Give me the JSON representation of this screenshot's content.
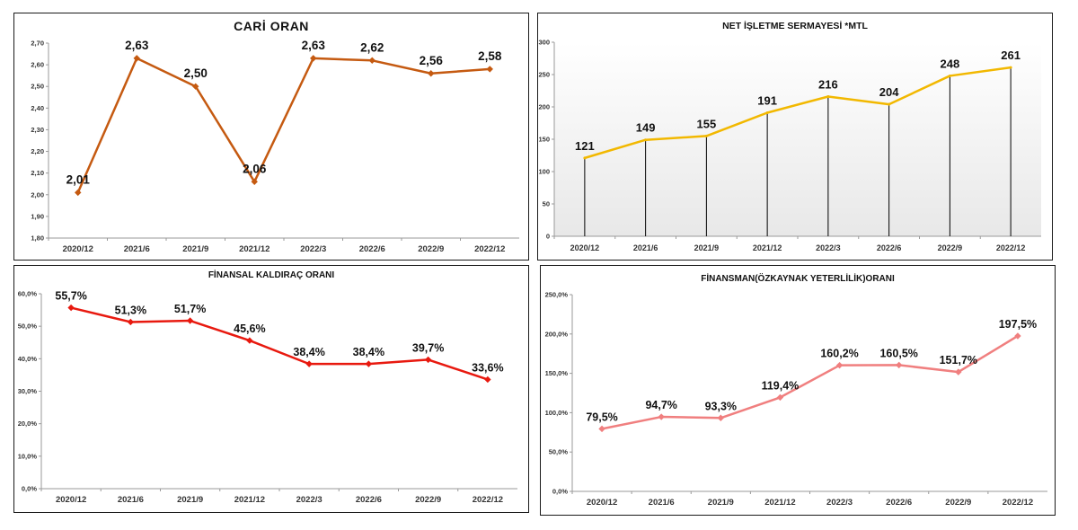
{
  "chart_data": [
    {
      "type": "line",
      "title": "CARİ ORAN",
      "categories": [
        "2020/12",
        "2021/6",
        "2021/9",
        "2021/12",
        "2022/3",
        "2022/6",
        "2022/9",
        "2022/12"
      ],
      "values": [
        2.01,
        2.63,
        2.5,
        2.06,
        2.63,
        2.62,
        2.56,
        2.58
      ],
      "data_labels": [
        "2,01",
        "2,63",
        "2,50",
        "2,06",
        "2,63",
        "2,62",
        "2,56",
        "2,58"
      ],
      "ylim": [
        1.8,
        2.7
      ],
      "yticks": [
        "1,80",
        "1,90",
        "2,00",
        "2,10",
        "2,20",
        "2,30",
        "2,40",
        "2,50",
        "2,60",
        "2,70"
      ],
      "xlabel": "",
      "ylabel": "",
      "color": "#c55a11",
      "grid": false
    },
    {
      "type": "line",
      "title": "NET İŞLETME SERMAYESİ *MTL",
      "categories": [
        "2020/12",
        "2021/6",
        "2021/9",
        "2021/12",
        "2022/3",
        "2022/6",
        "2022/9",
        "2022/12"
      ],
      "values": [
        121,
        149,
        155,
        191,
        216,
        204,
        248,
        261
      ],
      "data_labels": [
        "121",
        "149",
        "155",
        "191",
        "216",
        "204",
        "248",
        "261"
      ],
      "ylim": [
        0,
        300
      ],
      "yticks": [
        "0",
        "50",
        "100",
        "150",
        "200",
        "250",
        "300"
      ],
      "xlabel": "",
      "ylabel": "",
      "color": "#f2b800",
      "drop_lines": true,
      "grid": false
    },
    {
      "type": "line",
      "title": "FİNANSAL KALDIRAÇ ORANI",
      "categories": [
        "2020/12",
        "2021/6",
        "2021/9",
        "2021/12",
        "2022/3",
        "2022/6",
        "2022/9",
        "2022/12"
      ],
      "values": [
        55.7,
        51.3,
        51.7,
        45.6,
        38.4,
        38.4,
        39.7,
        33.6
      ],
      "data_labels": [
        "55,7%",
        "51,3%",
        "51,7%",
        "45,6%",
        "38,4%",
        "38,4%",
        "39,7%",
        "33,6%"
      ],
      "ylim": [
        0,
        60
      ],
      "yticks": [
        "0,0%",
        "10,0%",
        "20,0%",
        "30,0%",
        "40,0%",
        "50,0%",
        "60,0%"
      ],
      "xlabel": "",
      "ylabel": "",
      "color": "#e8190f",
      "grid": false
    },
    {
      "type": "line",
      "title": "FİNANSMAN(ÖZKAYNAK YETERLİLİK)ORANI",
      "categories": [
        "2020/12",
        "2021/6",
        "2021/9",
        "2021/12",
        "2022/3",
        "2022/6",
        "2022/9",
        "2022/12"
      ],
      "values": [
        79.5,
        94.7,
        93.3,
        119.4,
        160.2,
        160.5,
        151.7,
        197.5
      ],
      "data_labels": [
        "79,5%",
        "94,7%",
        "93,3%",
        "119,4%",
        "160,2%",
        "160,5%",
        "151,7%",
        "197,5%"
      ],
      "ylim": [
        0,
        250
      ],
      "yticks": [
        "0,0%",
        "50,0%",
        "100,0%",
        "150,0%",
        "200,0%",
        "250,0%"
      ],
      "xlabel": "",
      "ylabel": "",
      "color": "#f07f7f",
      "grid": false
    }
  ]
}
